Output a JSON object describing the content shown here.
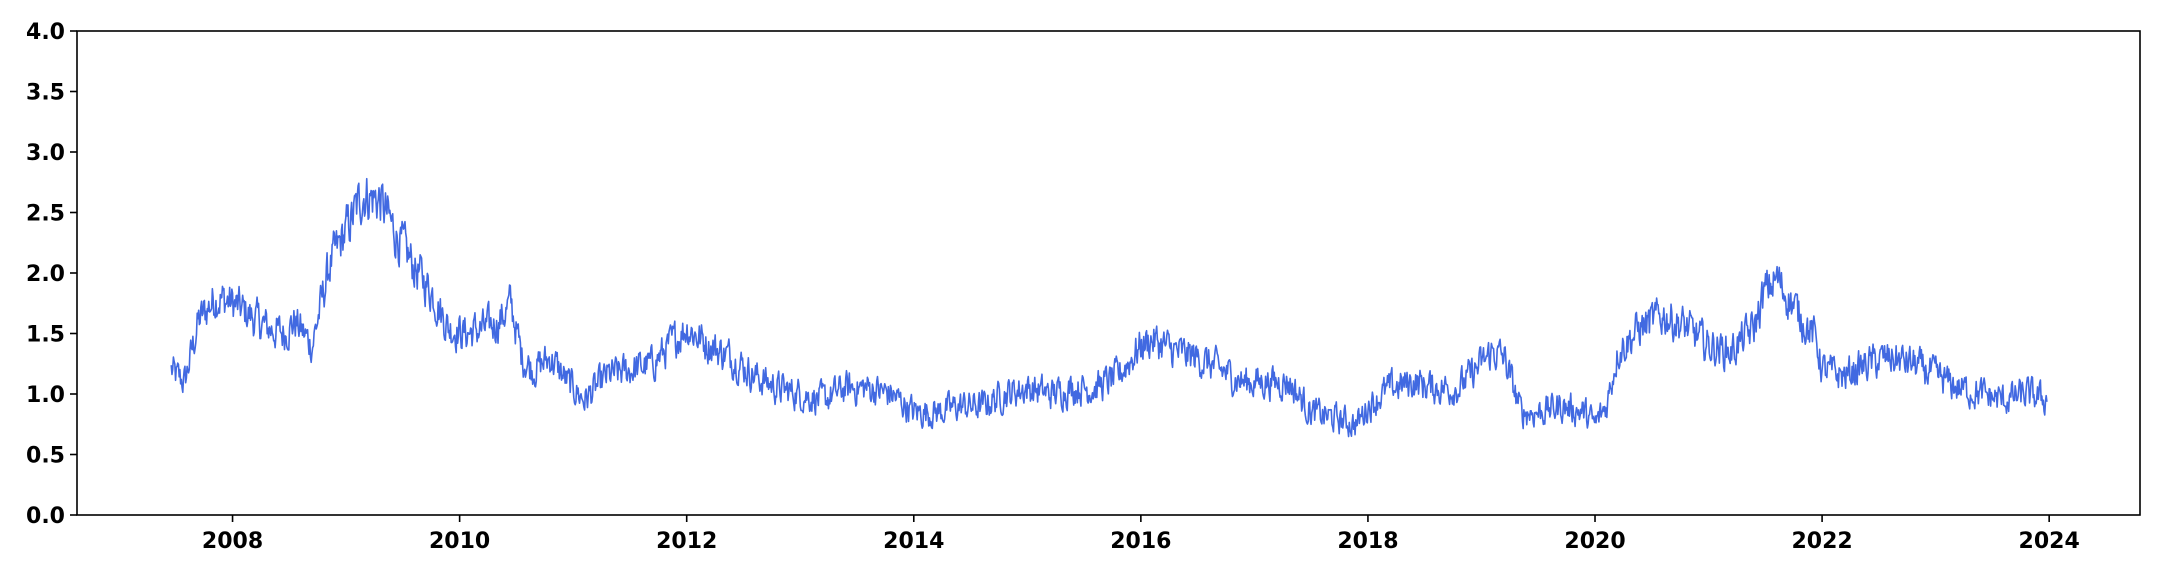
{
  "chart_data": {
    "type": "line",
    "title": "",
    "xlabel": "",
    "ylabel": "",
    "xlim": [
      2006.63,
      2024.8
    ],
    "ylim": [
      0.0,
      4.0
    ],
    "grid": false,
    "legend": "none",
    "x_ticks": [
      2008,
      2010,
      2012,
      2014,
      2016,
      2018,
      2020,
      2022,
      2024
    ],
    "x_tick_labels": [
      "2008",
      "2010",
      "2012",
      "2014",
      "2016",
      "2018",
      "2020",
      "2022",
      "2024"
    ],
    "y_ticks": [
      0.0,
      0.5,
      1.0,
      1.5,
      2.0,
      2.5,
      3.0,
      3.5,
      4.0
    ],
    "y_tick_labels": [
      "0.0",
      "0.5",
      "1.0",
      "1.5",
      "2.0",
      "2.5",
      "3.0",
      "3.5",
      "4.0"
    ],
    "series": [
      {
        "color": "#4169E1",
        "x": [
          2007.46,
          2007.5,
          2007.58,
          2007.7,
          2007.85,
          2008.0,
          2008.15,
          2008.3,
          2008.45,
          2008.55,
          2008.7,
          2008.85,
          2009.0,
          2009.15,
          2009.3,
          2009.45,
          2009.6,
          2009.75,
          2009.9,
          2010.05,
          2010.25,
          2010.35,
          2010.45,
          2010.55,
          2010.65,
          2010.8,
          2010.95,
          2011.1,
          2011.3,
          2011.5,
          2011.7,
          2011.9,
          2012.0,
          2012.2,
          2012.4,
          2012.6,
          2012.8,
          2013.0,
          2013.2,
          2013.4,
          2013.6,
          2013.8,
          2014.0,
          2014.2,
          2014.4,
          2014.6,
          2014.8,
          2015.0,
          2015.2,
          2015.4,
          2015.6,
          2015.8,
          2016.0,
          2016.1,
          2016.3,
          2016.5,
          2016.7,
          2016.9,
          2017.1,
          2017.3,
          2017.5,
          2017.7,
          2017.9,
          2018.0,
          2018.2,
          2018.4,
          2018.6,
          2018.8,
          2019.0,
          2019.1,
          2019.2,
          2019.35,
          2019.5,
          2019.7,
          2019.9,
          2020.0,
          2020.1,
          2020.2,
          2020.4,
          2020.6,
          2020.8,
          2021.0,
          2021.2,
          2021.4,
          2021.5,
          2021.6,
          2021.8,
          2021.95,
          2022.0,
          2022.2,
          2022.4,
          2022.6,
          2022.8,
          2023.0,
          2023.2,
          2023.4,
          2023.6,
          2023.8,
          2023.98
        ],
        "y": [
          1.2,
          1.15,
          1.1,
          1.6,
          1.8,
          1.75,
          1.65,
          1.55,
          1.5,
          1.6,
          1.4,
          2.05,
          2.35,
          2.65,
          2.6,
          2.3,
          2.05,
          1.85,
          1.55,
          1.5,
          1.55,
          1.6,
          1.75,
          1.3,
          1.2,
          1.3,
          1.1,
          0.95,
          1.15,
          1.2,
          1.25,
          1.45,
          1.55,
          1.4,
          1.3,
          1.15,
          1.05,
          1.0,
          0.95,
          1.05,
          1.05,
          1.0,
          0.85,
          0.85,
          0.9,
          0.9,
          1.0,
          1.05,
          1.0,
          1.05,
          1.05,
          1.15,
          1.4,
          1.45,
          1.35,
          1.3,
          1.2,
          1.1,
          1.1,
          1.1,
          0.85,
          0.8,
          0.75,
          0.9,
          1.05,
          1.1,
          1.05,
          1.05,
          1.25,
          1.35,
          1.3,
          0.85,
          0.85,
          0.9,
          0.85,
          0.75,
          0.9,
          1.35,
          1.55,
          1.65,
          1.55,
          1.4,
          1.35,
          1.55,
          1.85,
          1.95,
          1.65,
          1.45,
          1.2,
          1.15,
          1.25,
          1.3,
          1.25,
          1.15,
          1.05,
          1.0,
          0.95,
          1.0,
          0.95
        ],
        "noise": 0.12
      }
    ]
  }
}
